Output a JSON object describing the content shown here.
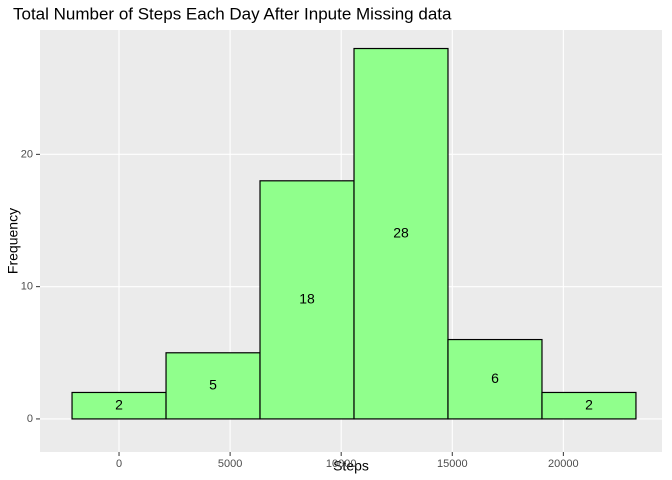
{
  "chart_data": {
    "type": "histogram",
    "title": "Total Number of Steps Each Day After Inpute Missing data",
    "x_label": "Steps",
    "y_label": "Frequency",
    "bins": [
      -2115,
      2116,
      6346,
      10577,
      14807,
      19038,
      23268
    ],
    "values": [
      2,
      5,
      18,
      28,
      6,
      2
    ],
    "color": "#90ff8c",
    "edge_color": "#000000",
    "xlim": [
      -3557,
      24440
    ],
    "xticks": [
      0,
      5000,
      10000,
      15000,
      20000
    ],
    "ylim": [
      -2.5,
      29.4
    ],
    "yticks": [
      0,
      10,
      20
    ],
    "grid": true
  }
}
